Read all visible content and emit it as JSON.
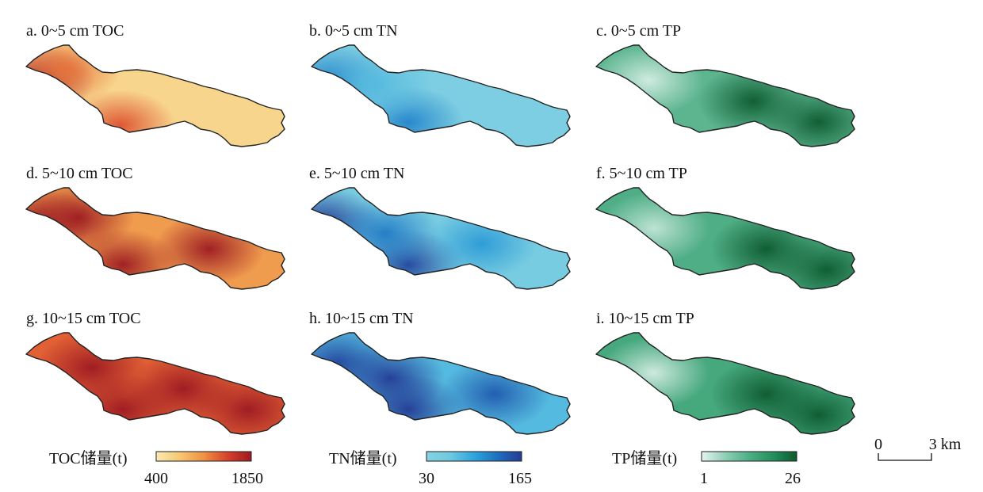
{
  "panels": [
    {
      "label": "a. 0~5 cm TOC",
      "variable": "TOC",
      "ramp": [
        "#fbe9b5",
        "#f6c773",
        "#ef9145",
        "#d8402a",
        "#9c1a22"
      ],
      "hotspots": [
        {
          "u": 0.05,
          "v": 0.35,
          "level": 0.9
        },
        {
          "u": 0.36,
          "v": 0.78,
          "level": 0.55
        },
        {
          "u": 0.15,
          "v": 0.25,
          "level": 0.45
        }
      ],
      "base": 0.15
    },
    {
      "label": "b. 0~5 cm TN",
      "variable": "TN",
      "ramp": [
        "#86d2e3",
        "#6fc8e0",
        "#2ea5dd",
        "#1e6fbf",
        "#243a94"
      ],
      "hotspots": [
        {
          "u": 0.08,
          "v": 0.35,
          "level": 0.55
        },
        {
          "u": 0.37,
          "v": 0.75,
          "level": 0.55
        },
        {
          "u": 0.25,
          "v": 0.4,
          "level": 0.25
        }
      ],
      "base": 0.1
    },
    {
      "label": "c. 0~5 cm TP",
      "variable": "TP",
      "ramp": [
        "#e6f4f1",
        "#8fcfb6",
        "#4fae85",
        "#23915c",
        "#0d5a2f"
      ],
      "hotspots": [
        {
          "u": 0.6,
          "v": 0.55,
          "level": 0.75
        },
        {
          "u": 0.85,
          "v": 0.75,
          "level": 0.7
        },
        {
          "u": 0.2,
          "v": 0.35,
          "level": -0.4
        }
      ],
      "base": 0.45
    },
    {
      "label": "d. 5~10 cm TOC",
      "variable": "TOC",
      "ramp": [
        "#fbe9b5",
        "#f6c773",
        "#ef9145",
        "#d8402a",
        "#9c1a22"
      ],
      "hotspots": [
        {
          "u": 0.04,
          "v": 0.35,
          "level": 1.0
        },
        {
          "u": 0.37,
          "v": 0.75,
          "level": 0.85
        },
        {
          "u": 0.2,
          "v": 0.3,
          "level": 0.7
        },
        {
          "u": 0.7,
          "v": 0.6,
          "level": 0.6
        }
      ],
      "base": 0.45
    },
    {
      "label": "e. 5~10 cm TN",
      "variable": "TN",
      "ramp": [
        "#86d2e3",
        "#6fc8e0",
        "#2ea5dd",
        "#1e6fbf",
        "#243a94"
      ],
      "hotspots": [
        {
          "u": 0.05,
          "v": 0.35,
          "level": 0.85
        },
        {
          "u": 0.37,
          "v": 0.75,
          "level": 0.8
        },
        {
          "u": 0.28,
          "v": 0.45,
          "level": 0.55
        },
        {
          "u": 0.65,
          "v": 0.55,
          "level": 0.4
        }
      ],
      "base": 0.15
    },
    {
      "label": "f. 5~10 cm TP",
      "variable": "TP",
      "ramp": [
        "#e6f4f1",
        "#8fcfb6",
        "#4fae85",
        "#23915c",
        "#0d5a2f"
      ],
      "hotspots": [
        {
          "u": 0.88,
          "v": 0.8,
          "level": 1.0
        },
        {
          "u": 0.65,
          "v": 0.6,
          "level": 0.75
        },
        {
          "u": 0.22,
          "v": 0.4,
          "level": -0.4
        }
      ],
      "base": 0.5
    },
    {
      "label": "g. 10~15 cm TOC",
      "variable": "TOC",
      "ramp": [
        "#fbe9b5",
        "#f6c773",
        "#ef9145",
        "#d8402a",
        "#9c1a22"
      ],
      "hotspots": [
        {
          "u": 0.25,
          "v": 0.35,
          "level": 1.0
        },
        {
          "u": 0.37,
          "v": 0.75,
          "level": 0.95
        },
        {
          "u": 0.85,
          "v": 0.75,
          "level": 0.9
        },
        {
          "u": 0.6,
          "v": 0.55,
          "level": 0.6
        }
      ],
      "base": 0.65
    },
    {
      "label": "h. 10~15 cm TN",
      "variable": "TN",
      "ramp": [
        "#86d2e3",
        "#6fc8e0",
        "#2ea5dd",
        "#1e6fbf",
        "#243a94"
      ],
      "hotspots": [
        {
          "u": 0.3,
          "v": 0.45,
          "level": 1.0
        },
        {
          "u": 0.37,
          "v": 0.75,
          "level": 0.9
        },
        {
          "u": 0.1,
          "v": 0.3,
          "level": 0.6
        },
        {
          "u": 0.7,
          "v": 0.6,
          "level": 0.5
        }
      ],
      "base": 0.35
    },
    {
      "label": "i. 10~15 cm TP",
      "variable": "TP",
      "ramp": [
        "#e6f4f1",
        "#8fcfb6",
        "#4fae85",
        "#23915c",
        "#0d5a2f"
      ],
      "hotspots": [
        {
          "u": 0.85,
          "v": 0.8,
          "level": 1.0
        },
        {
          "u": 0.65,
          "v": 0.6,
          "level": 0.8
        },
        {
          "u": 0.22,
          "v": 0.4,
          "level": -0.5
        }
      ],
      "base": 0.55
    }
  ],
  "legends": [
    {
      "title": "TOC储量(t)",
      "min": "400",
      "max": "1850",
      "colors": [
        "#fbe9b5",
        "#f6c773",
        "#ef9145",
        "#d8402a",
        "#9c1a22"
      ]
    },
    {
      "title": "TN储量(t)",
      "min": "30",
      "max": "165",
      "colors": [
        "#86d2e3",
        "#6fc8e0",
        "#2ea5dd",
        "#1e6fbf",
        "#243a94"
      ]
    },
    {
      "title": "TP储量(t)",
      "min": "1",
      "max": "26",
      "colors": [
        "#e6f4f1",
        "#8fcfb6",
        "#4fae85",
        "#23915c",
        "#0d5a2f"
      ]
    }
  ],
  "scale_bar": {
    "start": "0",
    "end": "3 km"
  }
}
